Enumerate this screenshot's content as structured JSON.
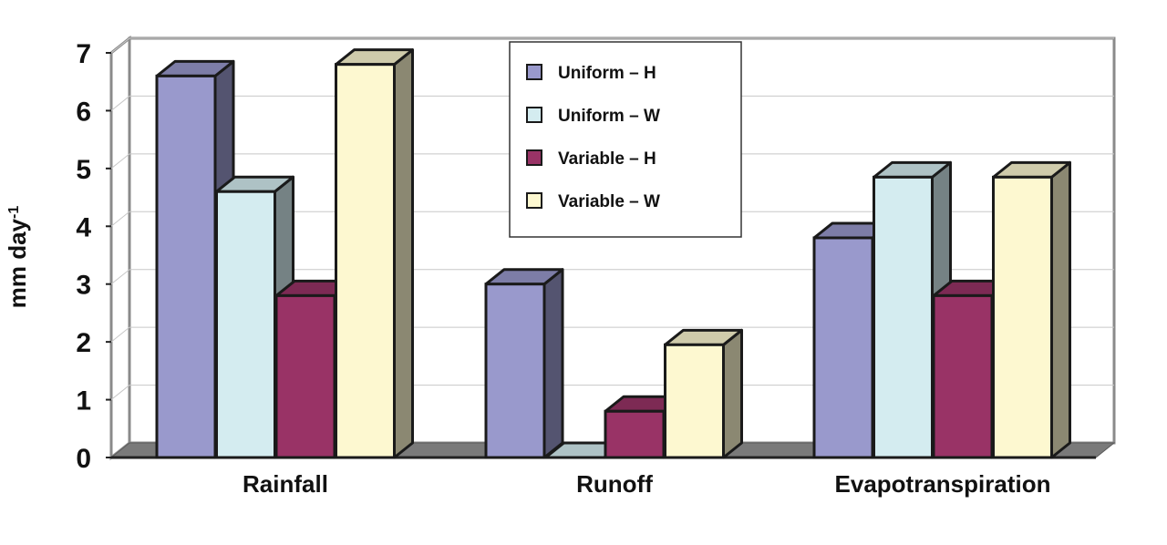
{
  "chart_data": {
    "type": "bar",
    "categories": [
      "Rainfall",
      "Runoff",
      "Evapotranspiration"
    ],
    "series": [
      {
        "name": "Uniform – H",
        "values": [
          6.6,
          3.0,
          3.8
        ],
        "color": "#9999cc"
      },
      {
        "name": "Uniform – W",
        "values": [
          4.6,
          0.0,
          4.85
        ],
        "color": "#d4ecf0"
      },
      {
        "name": "Variable – H",
        "values": [
          2.8,
          0.8,
          2.8
        ],
        "color": "#993366"
      },
      {
        "name": "Variable – W",
        "values": [
          6.8,
          1.95,
          4.85
        ],
        "color": "#fdf8d0"
      }
    ],
    "ylabel": "mm day",
    "ylabel_superscript": "-1",
    "ylim": [
      0,
      7
    ],
    "yticks": [
      0,
      1,
      2,
      3,
      4,
      5,
      6,
      7
    ],
    "grid": true,
    "legend_position": "top-center",
    "style": "3d-bar"
  }
}
